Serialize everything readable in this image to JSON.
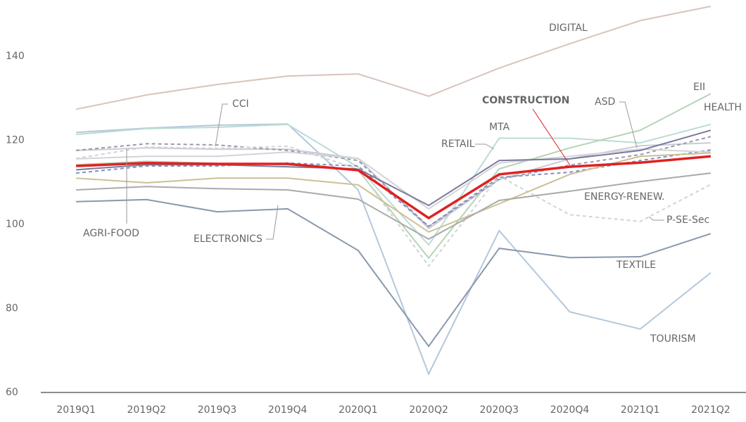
{
  "chart_data": {
    "type": "line",
    "categories": [
      "2019Q1",
      "2019Q2",
      "2019Q3",
      "2019Q4",
      "2020Q1",
      "2020Q2",
      "2020Q3",
      "2020Q4",
      "2021Q1",
      "2021Q2"
    ],
    "ylim": [
      60,
      153.4
    ],
    "yticks": [
      60,
      80,
      100,
      120,
      140
    ],
    "grid": false,
    "series": [
      {
        "name": "DIGITAL",
        "color": "#d8c4bc",
        "dashed": false,
        "values": [
          127.4,
          130.8,
          133.3,
          135.3,
          135.8,
          130.5,
          137.2,
          143,
          148.5,
          151.9
        ]
      },
      {
        "name": "TOURISM",
        "color": "#b4c8dc",
        "dashed": false,
        "values": [
          121.9,
          122.9,
          123.6,
          123.9,
          108.2,
          64.4,
          98.5,
          79.2,
          75.1,
          88.5
        ]
      },
      {
        "name": "HEALTH",
        "color": "#bcdcd4",
        "dashed": false,
        "values": [
          121.4,
          122.8,
          123.1,
          123.8,
          113.6,
          95.1,
          120.5,
          120.5,
          119.4,
          123.8
        ]
      },
      {
        "name": "EII",
        "color": "#b4d4b4",
        "dashed": false,
        "values": [
          114.2,
          115,
          114.5,
          114.2,
          112.9,
          92,
          113.2,
          118.2,
          122.4,
          131.1
        ]
      },
      {
        "name": "AGRI-FOOD",
        "color": "#c8ccd4",
        "dashed": false,
        "values": [
          117.6,
          118.2,
          117.9,
          117.9,
          115.7,
          99,
          110.7,
          115.6,
          118.7,
          119.4
        ]
      },
      {
        "name": "CCI",
        "color": "#9a9aa8",
        "dashed": true,
        "values": [
          117.6,
          119.2,
          118.9,
          117.6,
          115.2,
          99.5,
          110.7,
          114.1,
          116.6,
          120.9
        ]
      },
      {
        "name": "ASD",
        "color": "#8090c0",
        "dashed": true,
        "values": [
          112.2,
          113.9,
          113.9,
          114.6,
          113.9,
          99.5,
          111.2,
          112.4,
          115.2,
          117.7
        ]
      },
      {
        "name": "RETAIL",
        "color": "#d4d4d8",
        "dashed": false,
        "values": [
          115.6,
          116.2,
          116.2,
          117.2,
          115.7,
          103.7,
          114.6,
          116.2,
          117.9,
          117.2
        ]
      },
      {
        "name": "MTA",
        "color": "#7a7a9c",
        "dashed": false,
        "values": [
          113,
          114.2,
          114.2,
          113.7,
          113.2,
          104.5,
          115.2,
          115.6,
          117.6,
          122.4
        ]
      },
      {
        "name": "P-SE-Sec",
        "color": "#d0d4d8",
        "dashed": true,
        "values": [
          115.7,
          118.4,
          118.1,
          118.6,
          113.2,
          90.1,
          111.5,
          102.3,
          100.7,
          109.5
        ]
      },
      {
        "name": "ELECTRONICS",
        "color": "#ccc094",
        "dashed": false,
        "values": [
          111,
          109.9,
          111,
          111,
          109.4,
          98.2,
          104.9,
          111.9,
          116.2,
          117
        ]
      },
      {
        "name": "ENERGY-RENEW.",
        "color": "#aaaaaa",
        "dashed": false,
        "values": [
          108.2,
          109,
          108.5,
          108.2,
          106,
          96.5,
          105.7,
          107.9,
          110.2,
          112.2
        ]
      },
      {
        "name": "TEXTILE",
        "color": "#8898ac",
        "dashed": false,
        "values": [
          105.4,
          105.9,
          103,
          103.7,
          93.8,
          71,
          94.3,
          92.1,
          92.3,
          97.8
        ]
      },
      {
        "name": "CONSTRUCTION",
        "color": "#e02020",
        "dashed": false,
        "values": [
          113.9,
          114.6,
          114.4,
          114.4,
          112.9,
          101.5,
          111.9,
          113.7,
          114.7,
          116.2
        ]
      }
    ]
  }
}
